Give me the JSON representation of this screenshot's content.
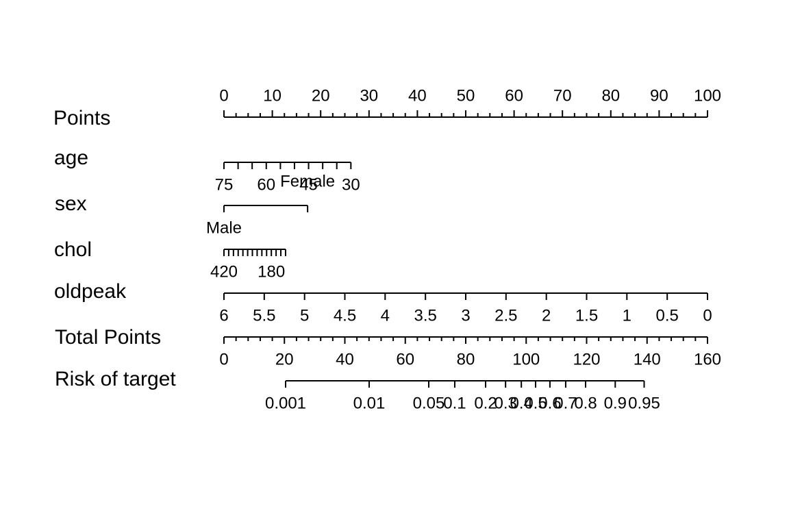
{
  "chart_data": {
    "type": "nomogram",
    "rows": [
      {
        "label": "Points",
        "ticks": [
          {
            "pos": 0,
            "text": "0"
          },
          {
            "pos": 10,
            "text": "10"
          },
          {
            "pos": 20,
            "text": "20"
          },
          {
            "pos": 30,
            "text": "30"
          },
          {
            "pos": 40,
            "text": "40"
          },
          {
            "pos": 50,
            "text": "50"
          },
          {
            "pos": 60,
            "text": "60"
          },
          {
            "pos": 70,
            "text": "70"
          },
          {
            "pos": 80,
            "text": "80"
          },
          {
            "pos": 90,
            "text": "90"
          },
          {
            "pos": 100,
            "text": "100"
          }
        ],
        "minor_step": 2.5,
        "labels_above": true
      },
      {
        "label": "age",
        "ticks": [
          {
            "pos": 0,
            "text": "75"
          },
          {
            "pos": 2.92,
            "text": ""
          },
          {
            "pos": 5.83,
            "text": ""
          },
          {
            "pos": 8.75,
            "text": "60"
          },
          {
            "pos": 11.67,
            "text": ""
          },
          {
            "pos": 14.58,
            "text": ""
          },
          {
            "pos": 17.5,
            "text": "45"
          },
          {
            "pos": 20.42,
            "text": ""
          },
          {
            "pos": 23.33,
            "text": ""
          },
          {
            "pos": 26.25,
            "text": "30"
          }
        ]
      },
      {
        "label": "sex",
        "ticks": [
          {
            "pos": 0,
            "text": "Male",
            "side": "below"
          },
          {
            "pos": 17.3,
            "text": "Female",
            "side": "above"
          }
        ]
      },
      {
        "label": "chol",
        "ticks": [
          {
            "pos": 0,
            "text": "420"
          },
          {
            "pos": 0.98,
            "text": ""
          },
          {
            "pos": 1.96,
            "text": ""
          },
          {
            "pos": 2.94,
            "text": ""
          },
          {
            "pos": 3.92,
            "text": ""
          },
          {
            "pos": 4.9,
            "text": ""
          },
          {
            "pos": 5.88,
            "text": ""
          },
          {
            "pos": 6.86,
            "text": ""
          },
          {
            "pos": 7.84,
            "text": ""
          },
          {
            "pos": 8.82,
            "text": ""
          },
          {
            "pos": 9.8,
            "text": "180"
          },
          {
            "pos": 10.78,
            "text": ""
          },
          {
            "pos": 11.76,
            "text": ""
          },
          {
            "pos": 12.74,
            "text": ""
          }
        ]
      },
      {
        "label": "oldpeak",
        "ticks": [
          {
            "pos": 0,
            "text": "6"
          },
          {
            "pos": 8.33,
            "text": "5.5"
          },
          {
            "pos": 16.67,
            "text": "5"
          },
          {
            "pos": 25,
            "text": "4.5"
          },
          {
            "pos": 33.33,
            "text": "4"
          },
          {
            "pos": 41.67,
            "text": "3.5"
          },
          {
            "pos": 50,
            "text": "3"
          },
          {
            "pos": 58.33,
            "text": "2.5"
          },
          {
            "pos": 66.67,
            "text": "2"
          },
          {
            "pos": 75,
            "text": "1.5"
          },
          {
            "pos": 83.33,
            "text": "1"
          },
          {
            "pos": 91.67,
            "text": "0.5"
          },
          {
            "pos": 100,
            "text": "0"
          }
        ]
      },
      {
        "label": "Total Points",
        "ticks": [
          {
            "pos": 0,
            "text": "0"
          },
          {
            "pos": 12.5,
            "text": "20"
          },
          {
            "pos": 25,
            "text": "40"
          },
          {
            "pos": 37.5,
            "text": "60"
          },
          {
            "pos": 50,
            "text": "80"
          },
          {
            "pos": 62.5,
            "text": "100"
          },
          {
            "pos": 75,
            "text": "120"
          },
          {
            "pos": 87.5,
            "text": "140"
          },
          {
            "pos": 100,
            "text": "160"
          }
        ],
        "minor_step": 2.5
      },
      {
        "label": "Risk of target",
        "ticks": [
          {
            "pos": 12.75,
            "text": "0.001"
          },
          {
            "pos": 30.03,
            "text": "0.01"
          },
          {
            "pos": 42.35,
            "text": "0.05"
          },
          {
            "pos": 47.73,
            "text": "0.1"
          },
          {
            "pos": 54.11,
            "text": "0.2"
          },
          {
            "pos": 58.24,
            "text": "0.3"
          },
          {
            "pos": 61.5,
            "text": "0.4"
          },
          {
            "pos": 64.45,
            "text": "0.5"
          },
          {
            "pos": 67.41,
            "text": "0.6"
          },
          {
            "pos": 70.67,
            "text": "0.7"
          },
          {
            "pos": 74.79,
            "text": "0.8"
          },
          {
            "pos": 80.92,
            "text": "0.9"
          },
          {
            "pos": 86.9,
            "text": "0.95"
          }
        ]
      }
    ]
  }
}
